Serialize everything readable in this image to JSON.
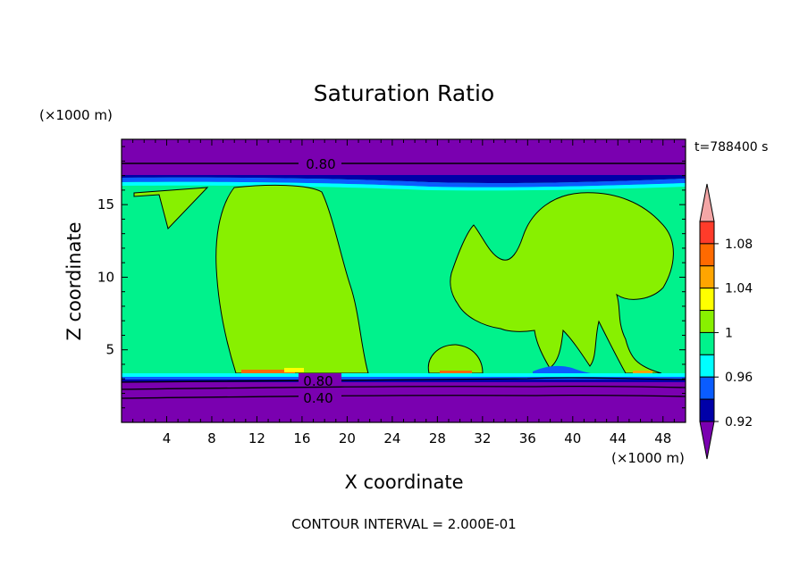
{
  "chart_data": {
    "type": "heatmap",
    "title": "Saturation Ratio",
    "xlabel": "X coordinate",
    "ylabel": "Z coordinate",
    "x_unit": "(×1000 m)",
    "y_unit": "(×1000 m)",
    "xlim": [
      0,
      50
    ],
    "ylim": [
      0,
      19.5
    ],
    "x_ticks": [
      "4",
      "8",
      "12",
      "16",
      "20",
      "24",
      "28",
      "32",
      "36",
      "40",
      "44",
      "48"
    ],
    "y_ticks": [
      "5",
      "10",
      "15"
    ],
    "time_label": "t=788400 s",
    "footer": "CONTOUR INTERVAL = 2.000E-01",
    "contour_labels": [
      "0.80",
      "0.80",
      "0.40"
    ],
    "colorbar": {
      "labels": [
        "1.08",
        "1.04",
        "1",
        "0.96",
        "0.92"
      ],
      "colors": [
        "#f4a6a6",
        "#ff3b2a",
        "#ff6a00",
        "#ffa500",
        "#ffff00",
        "#88f000",
        "#00f28c",
        "#00ffff",
        "#0a5cff",
        "#0000a8",
        "#7a00b0"
      ]
    },
    "regions": {
      "upper_stratified_top": [
        17.2,
        19.5
      ],
      "moist_layer": [
        3.5,
        17.0
      ],
      "lower_stratified": [
        0,
        3.2
      ],
      "supersaturated_plumes": [
        {
          "x": [
            8.5,
            22
          ],
          "z": [
            3.5,
            16.8
          ]
        },
        {
          "x": [
            27,
            32
          ],
          "z": [
            3.5,
            5.5
          ]
        },
        {
          "x": [
            29.5,
            49
          ],
          "z": [
            3.5,
            15.9
          ]
        },
        {
          "x": [
            1,
            7.5
          ],
          "z": [
            13.5,
            16.5
          ]
        }
      ]
    }
  }
}
